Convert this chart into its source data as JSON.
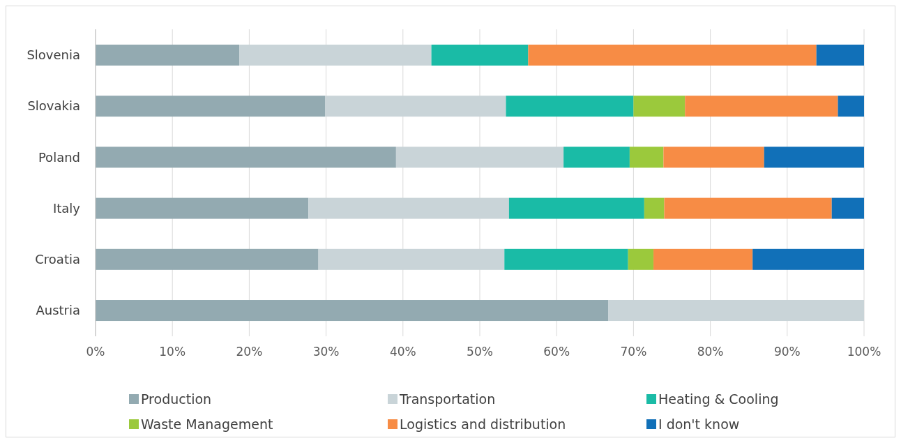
{
  "chart_data": {
    "type": "bar",
    "orientation": "horizontal",
    "stacked": true,
    "categories": [
      "Slovenia",
      "Slovakia",
      "Poland",
      "Italy",
      "Croatia",
      "Austria"
    ],
    "series": [
      {
        "name": "Production",
        "color": "#93aab1",
        "values": [
          18.7,
          29.9,
          39.1,
          27.7,
          29.0,
          66.7
        ]
      },
      {
        "name": "Transportation",
        "color": "#c9d4d8",
        "values": [
          25.0,
          23.5,
          21.8,
          26.1,
          24.2,
          33.3
        ]
      },
      {
        "name": "Heating & Cooling",
        "color": "#1abba6",
        "values": [
          12.6,
          16.6,
          8.6,
          17.6,
          16.1,
          0
        ]
      },
      {
        "name": "Waste Management",
        "color": "#9bc93c",
        "values": [
          0,
          6.7,
          4.4,
          2.6,
          3.3,
          0
        ]
      },
      {
        "name": "Logistics and distribution",
        "color": "#f78c45",
        "values": [
          37.5,
          19.9,
          13.1,
          21.8,
          12.9,
          0
        ]
      },
      {
        "name": "I don't know",
        "color": "#1170b8",
        "values": [
          6.2,
          3.4,
          13.0,
          4.2,
          14.5,
          0
        ]
      }
    ],
    "xlim": [
      0,
      100
    ],
    "xticks": [
      {
        "value": 0,
        "label": "0%"
      },
      {
        "value": 10,
        "label": "10%"
      },
      {
        "value": 20,
        "label": "20%"
      },
      {
        "value": 30,
        "label": "30%"
      },
      {
        "value": 40,
        "label": "40%"
      },
      {
        "value": 50,
        "label": "50%"
      },
      {
        "value": 60,
        "label": "60%"
      },
      {
        "value": 70,
        "label": "70%"
      },
      {
        "value": 80,
        "label": "80%"
      },
      {
        "value": 90,
        "label": "90%"
      },
      {
        "value": 100,
        "label": "100%"
      }
    ],
    "grid": "x",
    "legend": "bottom"
  }
}
